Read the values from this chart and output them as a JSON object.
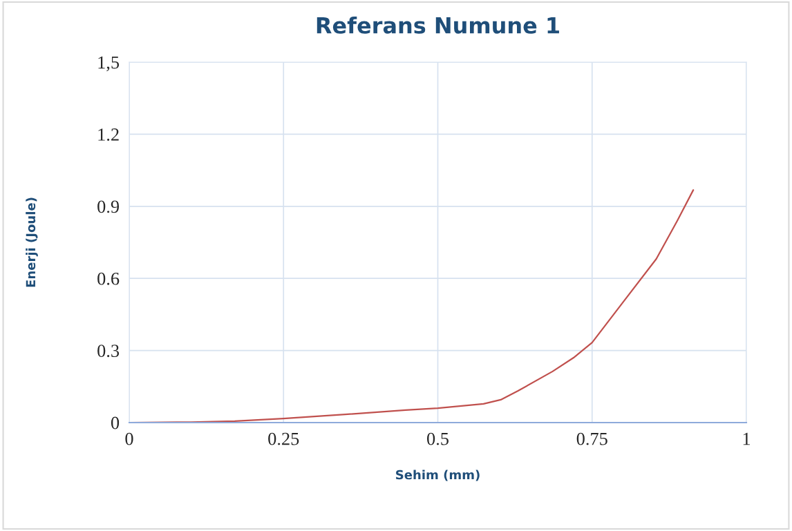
{
  "chart_data": {
    "type": "line",
    "title": "Referans Numune 1",
    "xlabel": "Sehim (mm)",
    "ylabel": "Enerji (Joule)",
    "x": [
      0,
      0.1,
      0.171,
      0.25,
      0.35,
      0.448,
      0.5,
      0.574,
      0.602,
      0.63,
      0.686,
      0.72,
      0.75,
      0.798,
      0.854,
      0.888,
      0.914
    ],
    "series": [
      {
        "color": "#c0504d",
        "values": [
          0,
          0.002,
          0.006,
          0.017,
          0.034,
          0.052,
          0.06,
          0.078,
          0.095,
          0.132,
          0.213,
          0.27,
          0.333,
          0.494,
          0.681,
          0.84,
          0.968
        ]
      }
    ],
    "xlim": [
      0,
      1
    ],
    "xticks": [
      0,
      0.25,
      0.5,
      0.75,
      1
    ],
    "ylim": [
      0,
      1.5
    ],
    "yticks": [
      0,
      0.3,
      0.6,
      0.9,
      1.2,
      {
        "value": 1.5,
        "label": "1,5"
      }
    ],
    "grid": true,
    "marker": "none",
    "line_style": "solid"
  }
}
